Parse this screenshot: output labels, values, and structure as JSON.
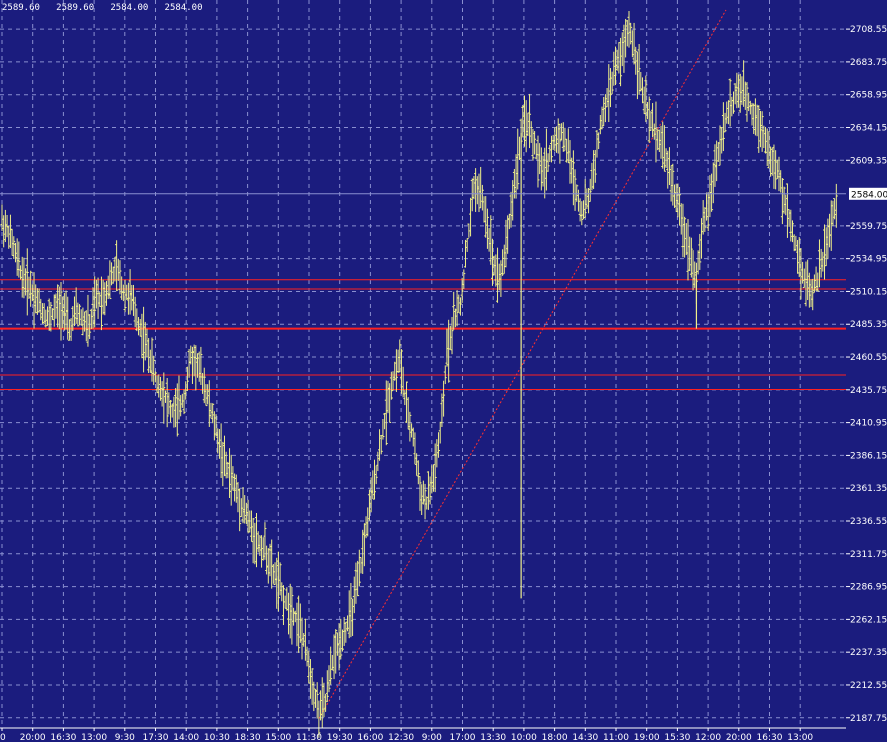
{
  "ohlc_readout": "2589.60   2589.60   2584.00   2584.00",
  "colors": {
    "background": "#1b1c7e",
    "grid": "#8a8fd0",
    "bars": "#f0f08a",
    "support_lines": "#ff2020",
    "trendline": "#ff3030",
    "axis_text": "#ffffff",
    "price_tag_bg": "#ffffff",
    "price_tag_text": "#000000"
  },
  "chart_data": {
    "type": "ohlc",
    "y_ticks": [
      "2708.55",
      "2683.75",
      "2658.95",
      "2634.15",
      "2609.35",
      "2559.75",
      "2534.95",
      "2510.15",
      "2485.35",
      "2460.55",
      "2435.75",
      "2410.95",
      "2386.15",
      "2361.35",
      "2336.55",
      "2311.75",
      "2286.95",
      "2262.15",
      "2237.35",
      "2212.55",
      "2187.75"
    ],
    "ylim": [
      2180,
      2723
    ],
    "x_ticks": [
      "0",
      "20:00",
      "16:30",
      "13:00",
      "9:30",
      "17:30",
      "14:00",
      "10:30",
      "18:30",
      "15:00",
      "11:30",
      "19:30",
      "16:00",
      "12:30",
      "9:00",
      "17:00",
      "13:30",
      "10:00",
      "18:00",
      "14:30",
      "11:00",
      "19:00",
      "15:30",
      "12:00",
      "20:00",
      "16:30",
      "13:00"
    ],
    "current_price": "2584.00",
    "horizontal_levels": [
      2519,
      2512,
      2482,
      2447,
      2436
    ],
    "trendline": {
      "from_price": 2187,
      "to_price": 2723
    },
    "price_path": [
      2563,
      2555,
      2538,
      2522,
      2515,
      2505,
      2495,
      2490,
      2497,
      2500,
      2480,
      2495,
      2488,
      2483,
      2505,
      2505,
      2518,
      2528,
      2510,
      2507,
      2490,
      2475,
      2460,
      2440,
      2435,
      2420,
      2420,
      2430,
      2460,
      2455,
      2440,
      2420,
      2400,
      2380,
      2370,
      2355,
      2345,
      2330,
      2320,
      2315,
      2300,
      2290,
      2275,
      2270,
      2260,
      2240,
      2215,
      2192,
      2200,
      2230,
      2245,
      2255,
      2270,
      2295,
      2330,
      2360,
      2390,
      2420,
      2445,
      2460,
      2420,
      2400,
      2360,
      2350,
      2370,
      2400,
      2460,
      2490,
      2500,
      2545,
      2590,
      2585,
      2560,
      2530,
      2520,
      2555,
      2590,
      2630,
      2640,
      2620,
      2600,
      2610,
      2625,
      2630,
      2615,
      2590,
      2570,
      2580,
      2610,
      2640,
      2660,
      2680,
      2690,
      2710,
      2690,
      2660,
      2640,
      2630,
      2620,
      2600,
      2580,
      2560,
      2540,
      2520,
      2560,
      2580,
      2610,
      2635,
      2650,
      2660,
      2660,
      2650,
      2640,
      2630,
      2610,
      2600,
      2580,
      2560,
      2540,
      2520,
      2510,
      2520,
      2540,
      2560,
      2584
    ],
    "spikes": [
      {
        "index": 77,
        "low": 2278
      },
      {
        "index": 66,
        "high": 2482
      },
      {
        "index": 103,
        "low": 2482
      }
    ]
  }
}
